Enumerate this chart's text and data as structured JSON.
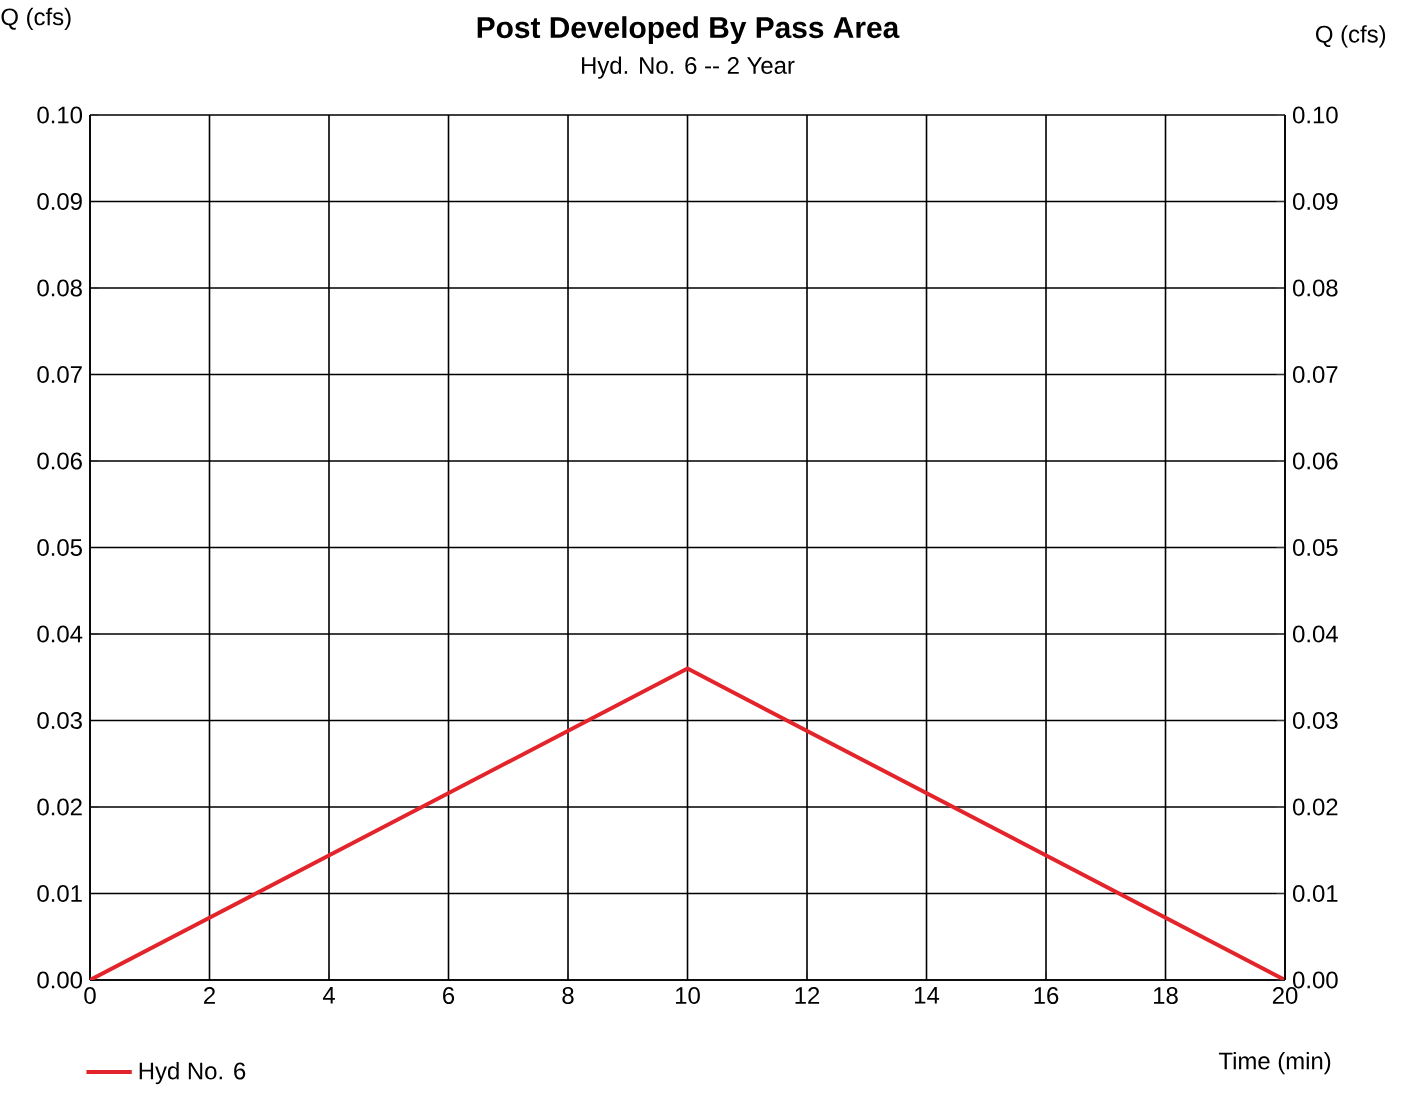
{
  "chart_data": {
    "type": "line",
    "title": "Post Developed By Pass Area",
    "subtitle": "Hyd. No. 6 -- 2 Year",
    "xlabel": "Time (min)",
    "ylabel": "Q (cfs)",
    "y2label": "Q (cfs)",
    "x": [
      0,
      10,
      20
    ],
    "series": [
      {
        "name": "Hyd No. 6",
        "color": "#e3242b",
        "values": [
          0,
          0.036,
          0
        ]
      }
    ],
    "xlim": [
      0,
      20
    ],
    "xticks": [
      0,
      2,
      4,
      6,
      8,
      10,
      12,
      14,
      16,
      18,
      20
    ],
    "ylim": [
      0,
      0.1
    ],
    "yticks": [
      {
        "value": 0,
        "label": "0.00"
      },
      {
        "value": 0.01,
        "label": "0.01"
      },
      {
        "value": 0.02,
        "label": "0.02"
      },
      {
        "value": 0.03,
        "label": "0.03"
      },
      {
        "value": 0.04,
        "label": "0.04"
      },
      {
        "value": 0.05,
        "label": "0.05"
      },
      {
        "value": 0.06,
        "label": "0.06"
      },
      {
        "value": 0.07,
        "label": "0.07"
      },
      {
        "value": 0.08,
        "label": "0.08"
      },
      {
        "value": 0.09,
        "label": "0.09"
      },
      {
        "value": 0.1,
        "label": "0.10"
      }
    ],
    "y2lim": [
      0,
      0.1
    ],
    "y2ticks": [
      {
        "value": 0,
        "label": "0.00"
      },
      {
        "value": 0.01,
        "label": "0.01"
      },
      {
        "value": 0.02,
        "label": "0.02"
      },
      {
        "value": 0.03,
        "label": "0.03"
      },
      {
        "value": 0.04,
        "label": "0.04"
      },
      {
        "value": 0.05,
        "label": "0.05"
      },
      {
        "value": 0.06,
        "label": "0.06"
      },
      {
        "value": 0.07,
        "label": "0.07"
      },
      {
        "value": 0.08,
        "label": "0.08"
      },
      {
        "value": 0.09,
        "label": "0.09"
      },
      {
        "value": 0.1,
        "label": "0.10"
      }
    ],
    "grid": true,
    "legend": "bottom left",
    "marker": "none",
    "line_style": "solid"
  }
}
